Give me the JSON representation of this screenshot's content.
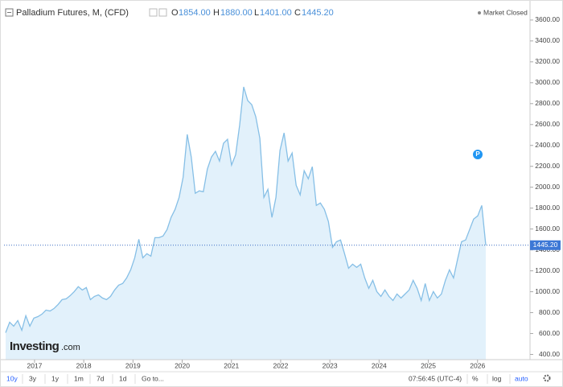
{
  "header": {
    "title": "Palladium Futures, M, (CFD)",
    "ohlc": [
      {
        "key": "O",
        "value": "1854.00"
      },
      {
        "key": "H",
        "value": "1880.00"
      },
      {
        "key": "L",
        "value": "1401.00"
      },
      {
        "key": "C",
        "value": "1445.20"
      }
    ],
    "status": "Market Closed",
    "marker": "P"
  },
  "watermark": {
    "brand": "Investing",
    "suffix": ".com"
  },
  "toolbar": {
    "ranges": [
      "10y",
      "3y",
      "1y",
      "1m",
      "7d",
      "1d"
    ],
    "goto": "Go to...",
    "time": "07:56:45 (UTC-4)",
    "options": [
      "%",
      "log",
      "auto"
    ]
  },
  "chart_data": {
    "type": "area",
    "color": "#86bfe6",
    "fill": "#e2f1fb",
    "values": [
      608,
      708,
      670,
      724,
      631,
      770,
      670,
      747,
      762,
      786,
      824,
      816,
      840,
      878,
      924,
      932,
      963,
      1001,
      1048,
      1017,
      1040,
      924,
      955,
      970,
      940,
      924,
      955,
      1017,
      1063,
      1078,
      1132,
      1210,
      1325,
      1502,
      1325,
      1364,
      1340,
      1517,
      1517,
      1533,
      1595,
      1711,
      1788,
      1903,
      2096,
      2505,
      2289,
      1942,
      1965,
      1957,
      2173,
      2289,
      2343,
      2250,
      2420,
      2459,
      2212,
      2312,
      2597,
      2960,
      2829,
      2790,
      2675,
      2467,
      1903,
      1980,
      1711,
      1903,
      2351,
      2520,
      2250,
      2327,
      2019,
      1927,
      2158,
      2081,
      2196,
      1826,
      1849,
      1788,
      1672,
      1425,
      1479,
      1495,
      1364,
      1225,
      1263,
      1233,
      1263,
      1132,
      1032,
      1109,
      1001,
      955,
      1017,
      955,
      916,
      978,
      940,
      978,
      1017,
      1109,
      1032,
      916,
      1078,
      916,
      1001,
      940,
      978,
      1109,
      1210,
      1132,
      1310,
      1479,
      1495,
      1595,
      1695,
      1726,
      1826,
      1445.2
    ],
    "xlim": [
      2016.38,
      2027.05
    ],
    "xticks": [
      2017,
      2018,
      2019,
      2020,
      2021,
      2022,
      2023,
      2024,
      2025,
      2026
    ],
    "ylim": [
      350,
      3730
    ],
    "yticks": [
      {
        "value": 400,
        "label": "400.00"
      },
      {
        "value": 600,
        "label": "600.00"
      },
      {
        "value": 800,
        "label": "800.00"
      },
      {
        "value": 1000,
        "label": "1000.00"
      },
      {
        "value": 1200,
        "label": "1200.00"
      },
      {
        "value": 1400,
        "label": "1400.00"
      },
      {
        "value": 1600,
        "label": "1600.00"
      },
      {
        "value": 1800,
        "label": "1800.00"
      },
      {
        "value": 2000,
        "label": "2000.00"
      },
      {
        "value": 2200,
        "label": "2200.00"
      },
      {
        "value": 2400,
        "label": "2400.00"
      },
      {
        "value": 2600,
        "label": "2600.00"
      },
      {
        "value": 2800,
        "label": "2800.00"
      },
      {
        "value": 3000,
        "label": "3000.00"
      },
      {
        "value": 3200,
        "label": "3200.00"
      },
      {
        "value": 3400,
        "label": "3400.00"
      },
      {
        "value": 3600,
        "label": "3600.00"
      }
    ]
  }
}
